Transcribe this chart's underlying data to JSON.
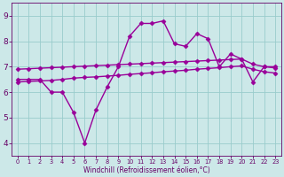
{
  "x": [
    0,
    1,
    2,
    3,
    4,
    5,
    6,
    7,
    8,
    9,
    10,
    11,
    12,
    13,
    14,
    15,
    16,
    17,
    18,
    19,
    20,
    21,
    22,
    23
  ],
  "y_main": [
    6.5,
    6.5,
    6.5,
    6.0,
    6.0,
    5.2,
    4.0,
    5.3,
    6.2,
    7.0,
    8.2,
    8.7,
    8.7,
    8.8,
    7.9,
    7.8,
    8.3,
    8.1,
    7.0,
    7.5,
    7.3,
    6.4,
    7.0,
    7.0
  ],
  "y_line1": [
    6.9,
    6.92,
    6.94,
    6.96,
    6.98,
    7.0,
    7.02,
    7.04,
    7.06,
    7.08,
    7.1,
    7.12,
    7.14,
    7.16,
    7.18,
    7.2,
    7.22,
    7.24,
    7.26,
    7.28,
    7.3,
    7.1,
    7.0,
    6.95
  ],
  "y_line2": [
    6.4,
    6.42,
    6.44,
    6.46,
    6.5,
    6.55,
    6.58,
    6.6,
    6.63,
    6.66,
    6.7,
    6.73,
    6.76,
    6.8,
    6.83,
    6.86,
    6.9,
    6.93,
    6.96,
    7.0,
    7.03,
    6.9,
    6.8,
    6.75
  ],
  "color_main": "#990099",
  "color_lines": "#990099",
  "bg_color": "#cce8e8",
  "grid_color": "#99cccc",
  "xlabel": "Windchill (Refroidissement éolien,°C)",
  "ylim": [
    3.5,
    9.5
  ],
  "xlim": [
    -0.5,
    23.5
  ],
  "yticks": [
    4,
    5,
    6,
    7,
    8,
    9
  ],
  "xticks": [
    0,
    1,
    2,
    3,
    4,
    5,
    6,
    7,
    8,
    9,
    10,
    11,
    12,
    13,
    14,
    15,
    16,
    17,
    18,
    19,
    20,
    21,
    22,
    23
  ],
  "marker": "D",
  "markersize": 2.5,
  "linewidth": 1.0,
  "tick_color": "#660066",
  "label_color": "#660066",
  "spine_color": "#660066",
  "xlabel_fontsize": 5.5,
  "ytick_fontsize": 6.5,
  "xtick_fontsize": 4.8
}
